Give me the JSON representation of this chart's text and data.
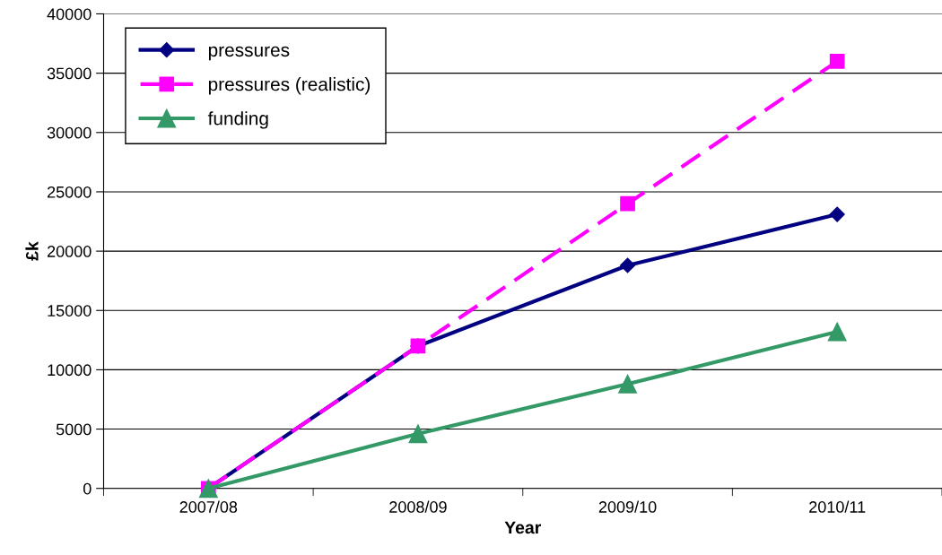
{
  "chart_data": {
    "type": "line",
    "xlabel": "Year",
    "ylabel": "£k",
    "categories": [
      "2007/08",
      "2008/09",
      "2009/10",
      "2010/11"
    ],
    "series": [
      {
        "name": "pressures",
        "color": "#000080",
        "values": [
          0,
          12000,
          18800,
          23100
        ],
        "marker": "diamond",
        "line_style": "solid"
      },
      {
        "name": "pressures (realistic)",
        "color": "#ff00ff",
        "values": [
          0,
          12000,
          24000,
          36000
        ],
        "marker": "square",
        "line_style": "dashed"
      },
      {
        "name": "funding",
        "color": "#339966",
        "values": [
          0,
          4600,
          8800,
          13200
        ],
        "marker": "triangle",
        "line_style": "solid"
      }
    ],
    "ylim": [
      0,
      40000
    ],
    "yticks": [
      0,
      5000,
      10000,
      15000,
      20000,
      25000,
      30000,
      35000,
      40000
    ],
    "grid": "y",
    "legend": "top left"
  }
}
